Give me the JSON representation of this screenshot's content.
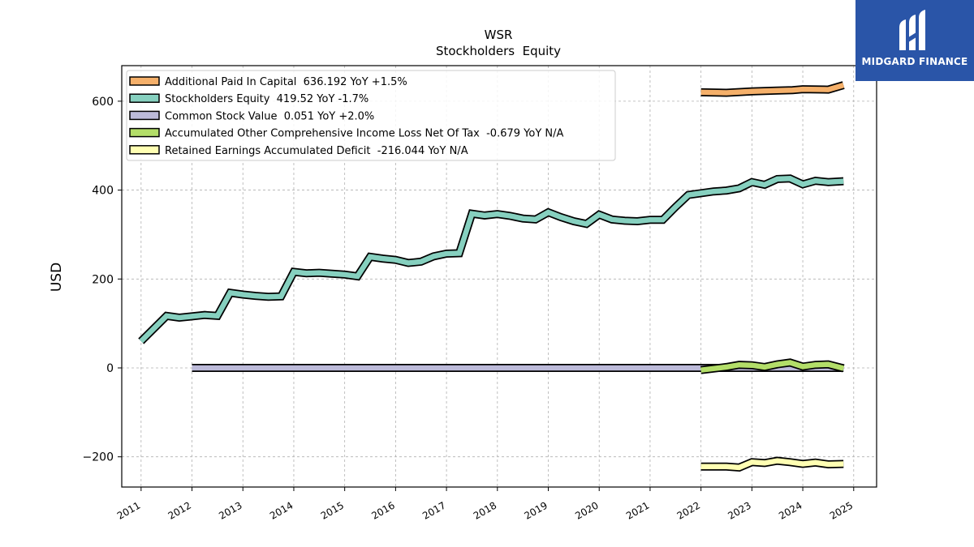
{
  "title": "WSR",
  "subtitle": "Stockholders  Equity",
  "logo": {
    "text": "MIDGARD FINANCE",
    "bg": "#2a55a8"
  },
  "chart_data": {
    "type": "line",
    "ylabel": "USD",
    "xlabel": "",
    "ylim": [
      -268,
      680
    ],
    "xlim": [
      2010.62,
      2025.45
    ],
    "yticks": [
      -200,
      0,
      200,
      400,
      600
    ],
    "ytick_labels": [
      "−200",
      "0",
      "200",
      "400",
      "600"
    ],
    "xticks": [
      2011,
      2012,
      2013,
      2014,
      2015,
      2016,
      2017,
      2018,
      2019,
      2020,
      2021,
      2022,
      2023,
      2024,
      2025
    ],
    "xtick_labels": [
      "2011",
      "2012",
      "2013",
      "2014",
      "2015",
      "2016",
      "2017",
      "2018",
      "2019",
      "2020",
      "2021",
      "2022",
      "2023",
      "2024",
      "2025"
    ],
    "grid": true,
    "legend_position": "top-left",
    "series": [
      {
        "name": "Additional Paid In Capital  636.192 YoY +1.5%",
        "color": "#f5b06a",
        "x": [
          2022.0,
          2022.5,
          2023.0,
          2023.5,
          2023.8,
          2024.0,
          2024.5,
          2024.8
        ],
        "y": [
          620,
          619,
          622,
          624,
          625,
          627,
          626,
          636
        ]
      },
      {
        "name": "Stockholders Equity  419.52 YoY -1.7%",
        "color": "#86d0bf",
        "x": [
          2011.0,
          2011.5,
          2011.75,
          2012.0,
          2012.25,
          2012.5,
          2012.75,
          2013.0,
          2013.25,
          2013.5,
          2013.75,
          2014.0,
          2014.25,
          2014.5,
          2014.75,
          2015.0,
          2015.25,
          2015.5,
          2015.75,
          2016.0,
          2016.25,
          2016.5,
          2016.75,
          2017.0,
          2017.25,
          2017.5,
          2017.75,
          2018.0,
          2018.25,
          2018.5,
          2018.75,
          2019.0,
          2019.25,
          2019.5,
          2019.75,
          2020.0,
          2020.25,
          2020.5,
          2020.75,
          2021.0,
          2021.25,
          2021.5,
          2021.75,
          2022.0,
          2022.25,
          2022.5,
          2022.75,
          2023.0,
          2023.25,
          2023.5,
          2023.75,
          2024.0,
          2024.25,
          2024.5,
          2024.8
        ],
        "y": [
          60,
          117,
          113,
          116,
          119,
          117,
          169,
          165,
          162,
          160,
          161,
          216,
          213,
          214,
          212,
          210,
          206,
          250,
          246,
          243,
          236,
          239,
          251,
          257,
          258,
          347,
          343,
          346,
          342,
          336,
          334,
          350,
          339,
          330,
          324,
          345,
          334,
          331,
          330,
          333,
          333,
          362,
          389,
          393,
          397,
          399,
          404,
          418,
          412,
          425,
          426,
          413,
          421,
          418,
          420
        ]
      },
      {
        "name": "Common Stock Value  0.051 YoY +2.0%",
        "color": "#bcbad9",
        "x": [
          2012.0,
          2024.8
        ],
        "y": [
          0.05,
          0.05
        ]
      },
      {
        "name": "Accumulated Other Comprehensive Income Loss Net Of Tax  -0.679 YoY N/A",
        "color": "#b3de69",
        "x": [
          2022.0,
          2022.5,
          2022.75,
          2023.0,
          2023.25,
          2023.5,
          2023.75,
          2024.0,
          2024.25,
          2024.5,
          2024.8
        ],
        "y": [
          -5,
          2,
          7,
          6,
          2,
          8,
          12,
          3,
          7,
          8,
          -1
        ]
      },
      {
        "name": "Retained Earnings Accumulated Deficit  -216.044 YoY N/A",
        "color": "#ffffb3",
        "x": [
          2022.0,
          2022.5,
          2022.75,
          2023.0,
          2023.25,
          2023.5,
          2023.75,
          2024.0,
          2024.25,
          2024.5,
          2024.8
        ],
        "y": [
          -222,
          -222,
          -224,
          -212,
          -214,
          -209,
          -212,
          -216,
          -213,
          -217,
          -216
        ]
      }
    ]
  }
}
